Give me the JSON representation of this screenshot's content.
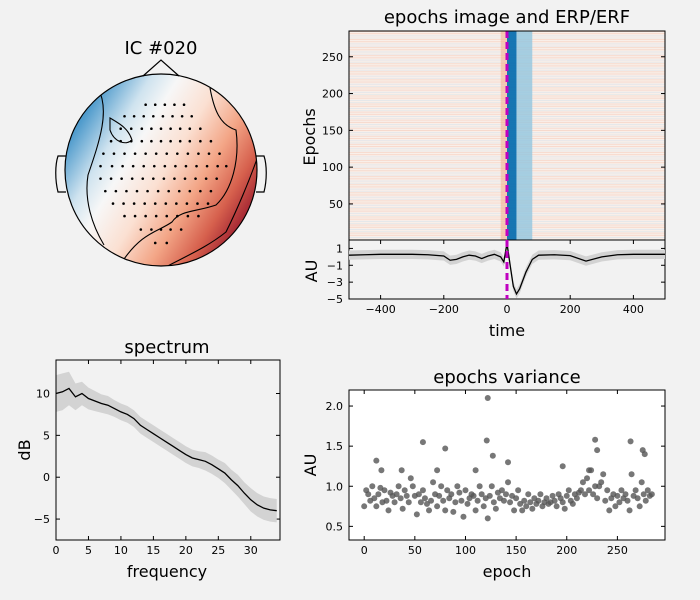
{
  "figure": {
    "background": "#f2f2f2"
  },
  "colors": {
    "topo_warm": "#b2182b",
    "topo_cool": "#4393c3",
    "event_line": "#c000c0",
    "spectrum_band": "#d3d3d3",
    "line": "#000000",
    "scatter": "#555555"
  },
  "chart_data": [
    {
      "type": "heatmap",
      "name": "topomap",
      "title": "IC #020",
      "description_colormap": "RdBu_r",
      "sensor_rows": [
        {
          "y": 0.68,
          "xs": [
            -0.16,
            -0.06,
            0.04,
            0.14,
            0.24
          ]
        },
        {
          "y": 0.56,
          "xs": [
            -0.38,
            -0.28,
            -0.18,
            -0.08,
            0.02,
            0.12,
            0.22,
            0.32
          ]
        },
        {
          "y": 0.43,
          "xs": [
            -0.42,
            -0.31,
            -0.2,
            -0.1,
            0.0,
            0.1,
            0.2,
            0.3,
            0.41
          ]
        },
        {
          "y": 0.3,
          "xs": [
            -0.52,
            -0.42,
            -0.31,
            -0.2,
            -0.1,
            0.0,
            0.1,
            0.2,
            0.3,
            0.41,
            0.52
          ]
        },
        {
          "y": 0.17,
          "xs": [
            -0.6,
            -0.49,
            -0.38,
            -0.27,
            -0.16,
            -0.05,
            0.06,
            0.17,
            0.28,
            0.39,
            0.5,
            0.61
          ]
        },
        {
          "y": 0.04,
          "xs": [
            -0.63,
            -0.51,
            -0.4,
            -0.29,
            -0.18,
            -0.07,
            0.04,
            0.15,
            0.26,
            0.37,
            0.48,
            0.59,
            0.68
          ]
        },
        {
          "y": -0.09,
          "xs": [
            -0.63,
            -0.52,
            -0.41,
            -0.3,
            -0.19,
            -0.08,
            0.03,
            0.14,
            0.25,
            0.36,
            0.47,
            0.58
          ]
        },
        {
          "y": -0.22,
          "xs": [
            -0.58,
            -0.47,
            -0.36,
            -0.25,
            -0.14,
            -0.03,
            0.08,
            0.19,
            0.3,
            0.41,
            0.52
          ]
        },
        {
          "y": -0.35,
          "xs": [
            -0.5,
            -0.39,
            -0.28,
            -0.17,
            -0.06,
            0.05,
            0.16,
            0.27,
            0.38,
            0.49
          ]
        },
        {
          "y": -0.48,
          "xs": [
            -0.38,
            -0.27,
            -0.16,
            -0.05,
            0.06,
            0.17,
            0.28,
            0.39
          ]
        },
        {
          "y": -0.62,
          "xs": [
            -0.21,
            -0.1,
            0.0,
            0.1,
            0.21
          ]
        },
        {
          "y": -0.76,
          "xs": [
            -0.06,
            0.06
          ]
        }
      ]
    },
    {
      "type": "heatmap",
      "name": "epochs_image",
      "title": "epochs image and ERP/ERF",
      "ylabel": "Epochs",
      "xlim": [
        -500,
        500
      ],
      "ylim": [
        1,
        285
      ],
      "yticks": [
        50,
        100,
        150,
        200,
        250
      ],
      "n_epochs": 285,
      "event_time": 0,
      "colormap": "RdBu_r"
    },
    {
      "type": "line",
      "name": "erp",
      "xlabel": "time",
      "ylabel": "AU",
      "xlim": [
        -500,
        500
      ],
      "ylim": [
        -5,
        2
      ],
      "xticks": [
        -400,
        -200,
        0,
        200,
        400
      ],
      "yticks": [
        1,
        -1,
        -3,
        -5
      ],
      "x": [
        -500,
        -450,
        -400,
        -350,
        -300,
        -250,
        -200,
        -180,
        -160,
        -140,
        -120,
        -100,
        -80,
        -60,
        -40,
        -20,
        -10,
        0,
        10,
        20,
        30,
        40,
        60,
        80,
        100,
        150,
        200,
        250,
        300,
        350,
        400,
        450,
        500
      ],
      "y": [
        0.2,
        0.25,
        0.3,
        0.3,
        0.3,
        0.25,
        0.1,
        -0.4,
        -0.3,
        0.0,
        0.2,
        0.1,
        -0.2,
        0.1,
        0.3,
        0.0,
        -0.6,
        1.6,
        -1.0,
        -3.5,
        -4.4,
        -3.8,
        -1.8,
        -0.3,
        0.2,
        0.25,
        0.15,
        -0.5,
        0.0,
        0.25,
        0.3,
        0.3,
        0.3
      ],
      "band_halfwidth": 0.55
    },
    {
      "type": "line",
      "name": "spectrum",
      "title": "spectrum",
      "xlabel": "frequency",
      "ylabel": "dB",
      "xlim": [
        0,
        34.5
      ],
      "ylim": [
        -7.5,
        14
      ],
      "xticks": [
        0,
        5,
        10,
        15,
        20,
        25,
        30
      ],
      "yticks": [
        10,
        5,
        0,
        -5
      ],
      "x": [
        0,
        1,
        2,
        3,
        4,
        5,
        6,
        7,
        8,
        9,
        10,
        11,
        12,
        13,
        14,
        15,
        16,
        17,
        18,
        19,
        20,
        21,
        22,
        23,
        24,
        25,
        26,
        27,
        28,
        29,
        30,
        31,
        32,
        33,
        34
      ],
      "y": [
        10.0,
        10.2,
        10.6,
        9.6,
        10.0,
        9.4,
        9.1,
        8.8,
        8.6,
        8.2,
        7.8,
        7.5,
        7.0,
        6.2,
        5.7,
        5.2,
        4.7,
        4.2,
        3.7,
        3.2,
        2.7,
        2.3,
        2.1,
        1.9,
        1.5,
        1.0,
        0.5,
        -0.3,
        -1.0,
        -1.9,
        -2.7,
        -3.3,
        -3.7,
        -3.9,
        -4.0
      ],
      "band_halfwidth": [
        2.2,
        2.2,
        2.0,
        1.6,
        1.4,
        1.3,
        1.2,
        1.1,
        1.1,
        1.0,
        1.0,
        1.0,
        1.0,
        1.0,
        1.0,
        1.0,
        1.0,
        1.0,
        1.0,
        1.0,
        1.0,
        1.0,
        1.0,
        1.1,
        1.1,
        1.1,
        1.2,
        1.2,
        1.3,
        1.3,
        1.4,
        1.4,
        1.4,
        1.4,
        1.4
      ]
    },
    {
      "type": "scatter",
      "name": "epochs_variance",
      "title": "epochs variance",
      "xlabel": "epoch",
      "ylabel": "AU",
      "xlim": [
        -15,
        297
      ],
      "ylim": [
        0.33,
        2.2
      ],
      "xticks": [
        0,
        50,
        100,
        150,
        200,
        250
      ],
      "yticks": [
        0.5,
        1.0,
        1.5,
        2.0
      ],
      "x": [
        0,
        2,
        4,
        6,
        8,
        10,
        12,
        14,
        16,
        18,
        20,
        22,
        24,
        26,
        28,
        30,
        32,
        34,
        36,
        38,
        40,
        42,
        44,
        46,
        48,
        50,
        52,
        54,
        56,
        58,
        60,
        62,
        64,
        66,
        68,
        70,
        72,
        74,
        76,
        78,
        80,
        82,
        84,
        86,
        88,
        90,
        92,
        94,
        96,
        98,
        100,
        102,
        104,
        106,
        108,
        110,
        112,
        114,
        116,
        118,
        120,
        122,
        124,
        126,
        128,
        130,
        132,
        134,
        136,
        138,
        140,
        142,
        144,
        146,
        148,
        150,
        152,
        154,
        156,
        158,
        160,
        162,
        164,
        166,
        168,
        170,
        172,
        174,
        176,
        178,
        180,
        182,
        184,
        186,
        188,
        190,
        192,
        194,
        196,
        198,
        200,
        202,
        204,
        206,
        208,
        210,
        212,
        214,
        216,
        218,
        220,
        222,
        224,
        226,
        228,
        230,
        232,
        234,
        236,
        238,
        240,
        242,
        244,
        246,
        248,
        250,
        252,
        254,
        256,
        258,
        260,
        262,
        264,
        266,
        268,
        270,
        272,
        274,
        276,
        278,
        280,
        282,
        284,
        12,
        17,
        37,
        58,
        72,
        80,
        110,
        121,
        122,
        127,
        142,
        196,
        222,
        228,
        230,
        263,
        275,
        277
      ],
      "y": [
        0.75,
        0.95,
        0.9,
        0.82,
        1.0,
        0.85,
        0.75,
        0.9,
        0.98,
        0.8,
        0.95,
        0.82,
        0.7,
        0.92,
        0.88,
        0.8,
        0.9,
        1.0,
        0.85,
        0.72,
        0.95,
        0.88,
        0.8,
        1.1,
        1.0,
        0.88,
        0.65,
        0.9,
        0.8,
        0.95,
        0.85,
        0.78,
        0.7,
        0.82,
        1.05,
        0.9,
        0.75,
        0.88,
        1.0,
        0.82,
        0.7,
        0.95,
        0.85,
        0.9,
        0.68,
        0.8,
        1.0,
        0.92,
        0.82,
        0.62,
        0.95,
        0.78,
        0.85,
        0.9,
        0.88,
        0.7,
        0.82,
        1.0,
        0.9,
        0.75,
        0.85,
        0.6,
        0.88,
        1.0,
        0.8,
        0.72,
        0.92,
        0.85,
        0.95,
        0.82,
        0.9,
        1.05,
        0.8,
        0.88,
        0.7,
        0.85,
        0.95,
        0.78,
        0.7,
        0.82,
        0.75,
        0.9,
        0.8,
        0.72,
        0.85,
        0.78,
        0.82,
        0.9,
        0.75,
        0.8,
        0.85,
        0.78,
        0.8,
        0.88,
        0.82,
        0.75,
        0.9,
        0.85,
        0.8,
        0.72,
        0.88,
        0.95,
        0.82,
        0.78,
        0.9,
        0.85,
        0.92,
        0.95,
        1.05,
        0.9,
        1.1,
        0.95,
        1.2,
        0.9,
        1.0,
        0.85,
        1.0,
        1.05,
        1.15,
        0.82,
        0.95,
        0.7,
        0.85,
        0.9,
        0.75,
        0.88,
        0.8,
        0.95,
        0.85,
        0.9,
        0.82,
        0.7,
        1.15,
        0.88,
        0.95,
        0.85,
        0.75,
        1.05,
        0.9,
        0.82,
        0.95,
        0.88,
        0.9,
        1.32,
        1.2,
        1.2,
        1.55,
        1.2,
        1.47,
        1.2,
        1.57,
        2.1,
        1.38,
        1.3,
        1.25,
        1.2,
        1.58,
        1.45,
        1.56,
        1.45,
        1.4
      ]
    }
  ]
}
